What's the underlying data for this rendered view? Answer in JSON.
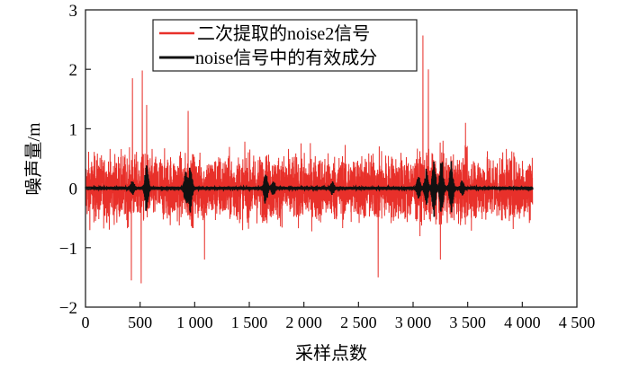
{
  "chart_data": {
    "type": "line",
    "xlabel": "采样点数",
    "ylabel": "噪声量/m",
    "xlim": [
      0,
      4500
    ],
    "ylim": [
      -2,
      3
    ],
    "x_ticks": [
      "0",
      "500",
      "1 000",
      "1 500",
      "2 000",
      "2 500",
      "3 000",
      "3 500",
      "4 000",
      "4 500"
    ],
    "x_tick_values": [
      0,
      500,
      1000,
      1500,
      2000,
      2500,
      3000,
      3500,
      4000,
      4500
    ],
    "y_ticks": [
      "−2",
      "−1",
      "0",
      "1",
      "2",
      "3"
    ],
    "y_tick_values": [
      -2,
      -1,
      0,
      1,
      2,
      3
    ],
    "grid": false,
    "legend_position": "top-center",
    "series": [
      {
        "name": "二次提取的noise2信号",
        "color": "#e8302a",
        "n_points": 4096,
        "typical_amplitude": 0.7,
        "peaks": [
          [
            430,
            1.85
          ],
          [
            520,
            1.98
          ],
          [
            560,
            1.4
          ],
          [
            940,
            1.3
          ],
          [
            3090,
            2.57
          ],
          [
            3140,
            2.0
          ],
          [
            3480,
            1.1
          ],
          [
            420,
            -1.55
          ],
          [
            510,
            -1.6
          ],
          [
            2680,
            -1.5
          ],
          [
            1090,
            -1.2
          ],
          [
            3250,
            -1.2
          ]
        ]
      },
      {
        "name": "noise信号中的有效成分",
        "color": "#111111",
        "n_points": 4096,
        "typical_amplitude": 0.05,
        "bursts": [
          [
            430,
            0.12
          ],
          [
            560,
            0.45
          ],
          [
            920,
            0.3
          ],
          [
            960,
            0.42
          ],
          [
            1650,
            0.3
          ],
          [
            1720,
            0.12
          ],
          [
            2260,
            0.1
          ],
          [
            3050,
            0.2
          ],
          [
            3120,
            0.3
          ],
          [
            3190,
            0.5
          ],
          [
            3260,
            0.5
          ],
          [
            3350,
            0.45
          ],
          [
            3450,
            0.12
          ]
        ]
      }
    ]
  }
}
